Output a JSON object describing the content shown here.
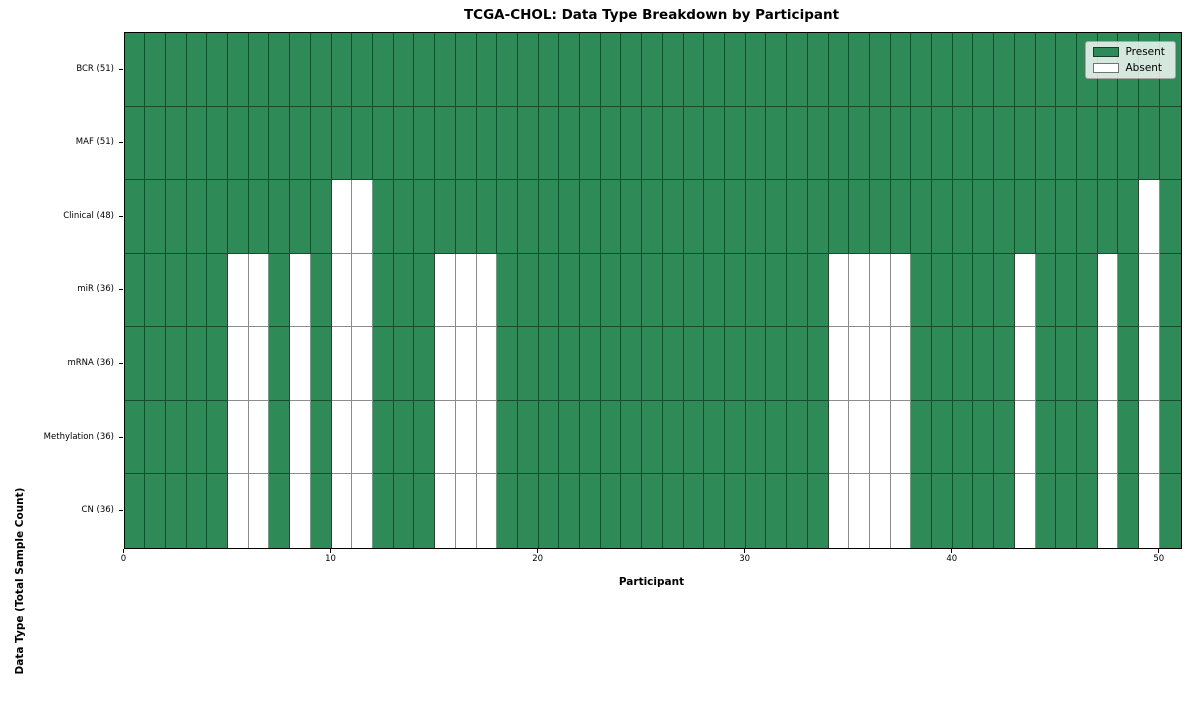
{
  "chart_data": {
    "type": "heatmap",
    "title": "TCGA-CHOL: Data Type Breakdown by Participant",
    "xlabel": "Participant",
    "ylabel": "Data Type (Total Sample Count)",
    "n_participants": 51,
    "x_range": [
      0,
      51
    ],
    "x_ticks": [
      0,
      10,
      20,
      30,
      40,
      50
    ],
    "grid": true,
    "rows": [
      {
        "label": "BCR (51)",
        "total_samples": 51,
        "absent_participants": []
      },
      {
        "label": "MAF (51)",
        "total_samples": 51,
        "absent_participants": []
      },
      {
        "label": "Clinical (48)",
        "total_samples": 48,
        "absent_participants": [
          10,
          11,
          49
        ]
      },
      {
        "label": "miR (36)",
        "total_samples": 36,
        "absent_participants": [
          5,
          6,
          8,
          10,
          11,
          15,
          16,
          17,
          34,
          35,
          36,
          37,
          43,
          47,
          49
        ]
      },
      {
        "label": "mRNA (36)",
        "total_samples": 36,
        "absent_participants": [
          5,
          6,
          8,
          10,
          11,
          15,
          16,
          17,
          34,
          35,
          36,
          37,
          43,
          47,
          49
        ]
      },
      {
        "label": "Methylation (36)",
        "total_samples": 36,
        "absent_participants": [
          5,
          6,
          8,
          10,
          11,
          15,
          16,
          17,
          34,
          35,
          36,
          37,
          43,
          47,
          49
        ]
      },
      {
        "label": "CN (36)",
        "total_samples": 36,
        "absent_participants": [
          5,
          6,
          8,
          10,
          11,
          15,
          16,
          17,
          34,
          35,
          36,
          37,
          43,
          47,
          49
        ]
      }
    ],
    "legend": {
      "position": "upper right",
      "entries": [
        {
          "label": "Present",
          "color": "#2e8b57"
        },
        {
          "label": "Absent",
          "color": "#ffffff"
        }
      ]
    },
    "colors": {
      "present": "#2e8b57",
      "absent": "#ffffff",
      "gridline": "rgba(0,0,0,0.45)"
    }
  }
}
